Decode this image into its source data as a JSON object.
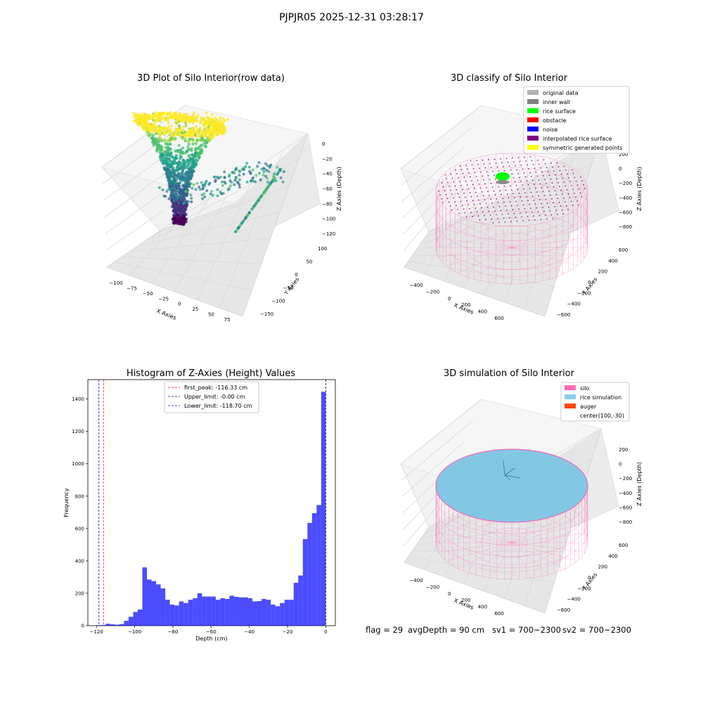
{
  "suptitle": "PJPJR05 2025-12-31 03:28:17",
  "footer": {
    "flag": "flag = 29",
    "avg_depth": "avgDepth = 90 cm",
    "sv1": "sv1 = 700~2300",
    "sv2": "sv2 = 700~2300"
  },
  "colors": {
    "original": "#b0b0b0",
    "inner_wall": "#808080",
    "rice_surface": "#00ff00",
    "obstacle": "#ff0000",
    "noise": "#0000ff",
    "interpolated": "#800080",
    "symmetric": "#ffff00",
    "silo": "#ff69b4",
    "rice_sim": "#87ceeb",
    "auger": "#ff4500",
    "hist_bar": "#0000ff"
  },
  "chart_data": [
    {
      "type": "scatter",
      "projection": "3d",
      "title": "3D Plot of Silo Interior(row data)",
      "xlabel": "X Axies",
      "ylabel": "Y Axies",
      "zlabel": "Z Axies (Depth)",
      "x_ticks": [
        "−100",
        "−75",
        "−50",
        "−25",
        "0",
        "25",
        "50",
        "75"
      ],
      "y_ticks": [
        "100",
        "50",
        "0",
        "−50",
        "−100",
        "−150"
      ],
      "z_ticks": [
        "0",
        "−20",
        "−40",
        "−60",
        "−80",
        "−100",
        "−120"
      ],
      "xlim": [
        -115,
        80
      ],
      "ylim": [
        -160,
        110
      ],
      "zlim": [
        -125,
        5
      ],
      "colormap": "viridis"
    },
    {
      "type": "scatter",
      "projection": "3d",
      "title": "3D classify of Silo Interior",
      "xlabel": "X Axies",
      "ylabel": "Y Axies",
      "zlabel": "Z Axies (Depth)",
      "x_ticks": [
        "−400",
        "−200",
        "0",
        "200",
        "400",
        "600"
      ],
      "y_ticks": [
        "600",
        "400",
        "200",
        "0",
        "−200",
        "−400",
        "−600"
      ],
      "z_ticks": [
        "200",
        "0",
        "−200",
        "−400",
        "−600",
        "−800"
      ],
      "legend": [
        "original data",
        "inner wall",
        "rice surface",
        "obstacle",
        "noise",
        "interpolated rice surface",
        "symmetric generated points"
      ],
      "legend_loc": "upper right"
    },
    {
      "type": "bar",
      "title": "Histogram of Z-Axies (Height) Values",
      "xlabel": "Depth (cm)",
      "ylabel": "Frequency",
      "xlim": [
        -124.5,
        5
      ],
      "ylim": [
        0,
        1520
      ],
      "x_ticks": [
        -120,
        -100,
        -80,
        -60,
        -40,
        -20,
        0
      ],
      "x_tick_labels": [
        "−120",
        "−100",
        "−80",
        "−60",
        "−40",
        "−20",
        "0"
      ],
      "y_ticks": [
        0,
        200,
        400,
        600,
        800,
        1000,
        1200,
        1400
      ],
      "bin_start": -120,
      "bin_width": 2.4,
      "values": [
        3,
        4,
        12,
        8,
        6,
        10,
        30,
        55,
        85,
        100,
        360,
        285,
        275,
        255,
        230,
        160,
        130,
        125,
        150,
        140,
        160,
        170,
        200,
        180,
        180,
        180,
        160,
        170,
        165,
        185,
        178,
        175,
        175,
        170,
        150,
        152,
        165,
        160,
        130,
        120,
        140,
        160,
        160,
        265,
        310,
        535,
        635,
        695,
        745,
        1445
      ],
      "vlines": [
        {
          "label": "first_peak: -116.33 cm",
          "x": -116.33,
          "color": "#ff0000"
        },
        {
          "label": "Upper_limit: -0.00 cm",
          "x": 0,
          "color": "#00008b"
        },
        {
          "label": "Lower_limit: -118.70 cm",
          "x": -118.7,
          "color": "#0000ff"
        }
      ],
      "legend_loc": "upper center"
    },
    {
      "type": "scatter",
      "projection": "3d",
      "title": "3D simulation of Silo Interior",
      "xlabel": "X Axies",
      "ylabel": "Y Axies",
      "zlabel": "Z Axies (Depth)",
      "x_ticks": [
        "−400",
        "−200",
        "0",
        "200",
        "400",
        "600"
      ],
      "y_ticks": [
        "600",
        "400",
        "200",
        "0",
        "−200",
        "−400",
        "−600"
      ],
      "z_ticks": [
        "200",
        "0",
        "−200",
        "−400",
        "−600",
        "−800"
      ],
      "legend": [
        "silo",
        "rice simulation",
        "auger",
        "center(100,-30)"
      ],
      "legend_loc": "upper right"
    }
  ]
}
